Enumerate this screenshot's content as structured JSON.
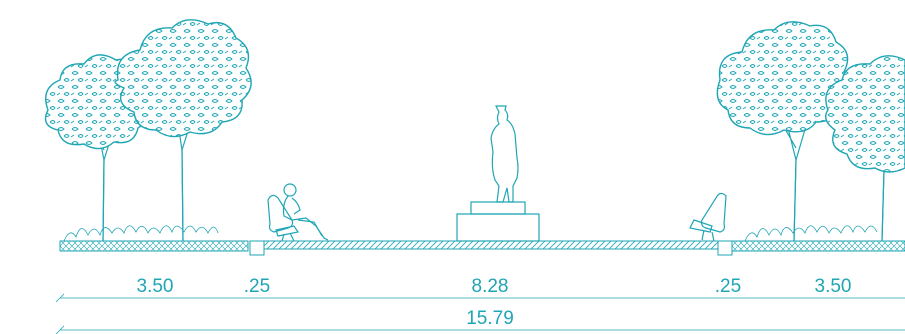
{
  "diagram": {
    "accent_color": "#1fa6b5",
    "dimensions": {
      "left_sidewalk": "3.50",
      "left_curb": ".25",
      "center": "8.28",
      "right_curb": ".25",
      "right_sidewalk": "3.50",
      "total": "15.79"
    },
    "elements": [
      "tree-left-1",
      "tree-left-2",
      "bench-with-person",
      "statue-on-pedestal",
      "empty-bench",
      "tree-right-1",
      "tree-right-2"
    ]
  }
}
